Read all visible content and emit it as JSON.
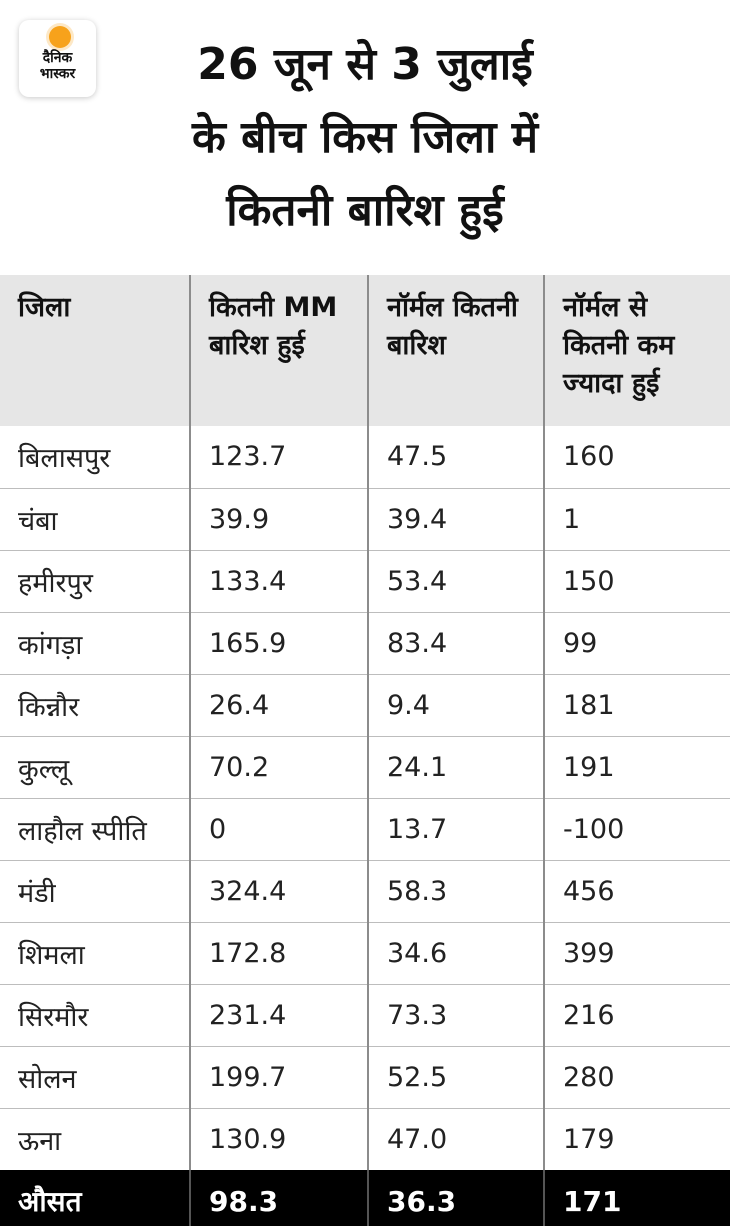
{
  "logo": {
    "line1": "दैनिक",
    "line2": "भास्कर",
    "sun_color": "#f7a21b"
  },
  "title": {
    "line1": "26 जून से 3 जुलाई",
    "line2": "के बीच किस जिला में",
    "line3": "कितनी बारिश हुई"
  },
  "table": {
    "headers": [
      "जिला",
      "कितनी MM बारिश हुई",
      "नॉर्मल कितनी बारिश",
      "नॉर्मल से कितनी कम ज्यादा हुई"
    ],
    "rows": [
      [
        "बिलासपुर",
        "123.7",
        "47.5",
        "160"
      ],
      [
        "चंबा",
        "39.9",
        "39.4",
        "1"
      ],
      [
        "हमीरपुर",
        "133.4",
        "53.4",
        "150"
      ],
      [
        "कांगड़ा",
        "165.9",
        "83.4",
        "99"
      ],
      [
        "किन्नौर",
        "26.4",
        "9.4",
        "181"
      ],
      [
        "कुल्लू",
        "70.2",
        "24.1",
        "191"
      ],
      [
        "लाहौल स्पीति",
        "0",
        "13.7",
        "-100"
      ],
      [
        "मंडी",
        "324.4",
        "58.3",
        "456"
      ],
      [
        "शिमला",
        "172.8",
        "34.6",
        "399"
      ],
      [
        "सिरमौर",
        "231.4",
        "73.3",
        "216"
      ],
      [
        "सोलन",
        "199.7",
        "52.5",
        "280"
      ],
      [
        "ऊना",
        "130.9",
        "47.0",
        "179"
      ]
    ],
    "footer": [
      "औसत",
      "98.3",
      "36.3",
      "171"
    ]
  }
}
